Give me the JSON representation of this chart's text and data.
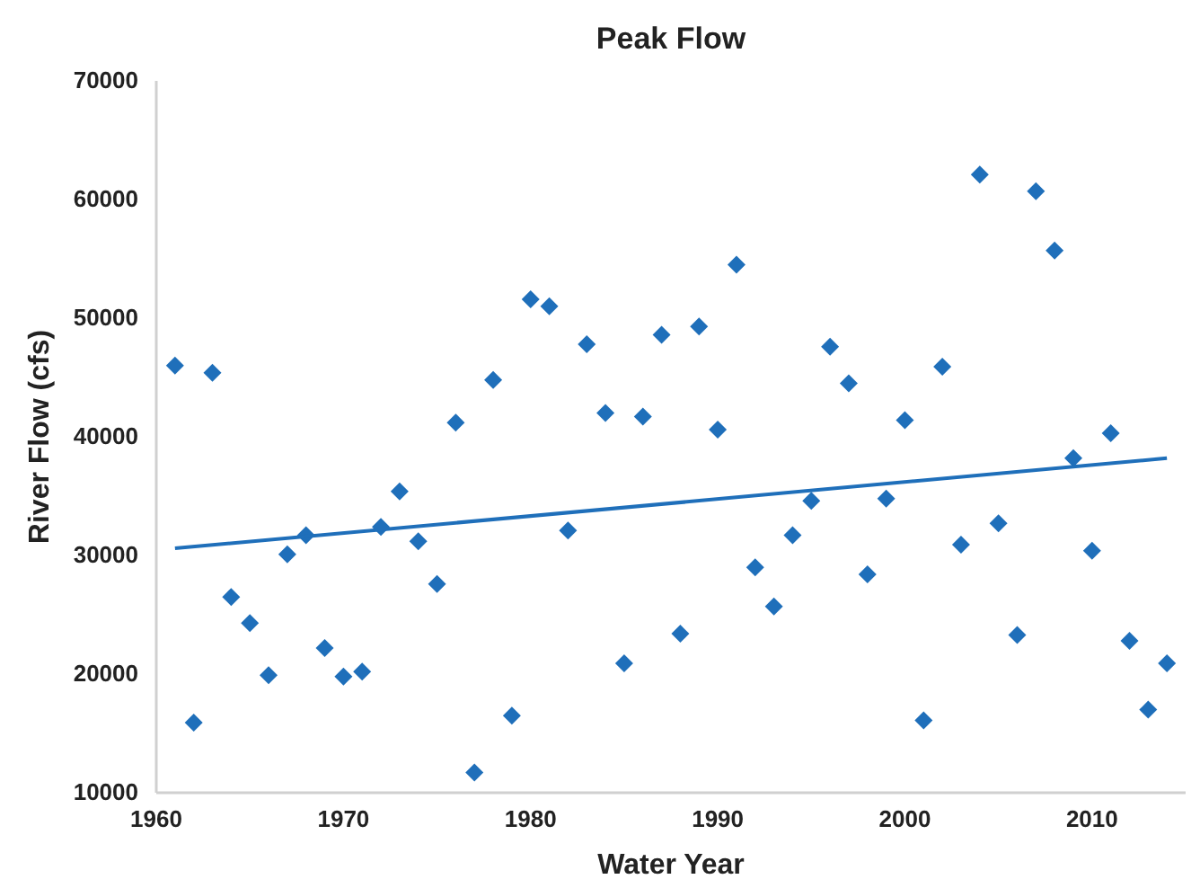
{
  "chart_data": {
    "type": "scatter",
    "title": "Peak Flow",
    "xlabel": "Water Year",
    "ylabel": "River Flow (cfs)",
    "xlim": [
      1960,
      2015
    ],
    "xticks": [
      1960,
      1970,
      1980,
      1990,
      2000,
      2010
    ],
    "ylim": [
      10000,
      70000
    ],
    "yticks": [
      10000,
      20000,
      30000,
      40000,
      50000,
      60000,
      70000
    ],
    "grid": false,
    "marker": "diamond",
    "series": [
      {
        "type": "scatter",
        "color": "#1f6fba",
        "x": [
          1961,
          1962,
          1963,
          1964,
          1965,
          1966,
          1967,
          1968,
          1969,
          1970,
          1971,
          1972,
          1973,
          1974,
          1975,
          1976,
          1977,
          1978,
          1979,
          1980,
          1981,
          1982,
          1983,
          1984,
          1985,
          1986,
          1987,
          1988,
          1989,
          1990,
          1991,
          1992,
          1993,
          1994,
          1995,
          1996,
          1997,
          1998,
          1999,
          2000,
          2001,
          2002,
          2003,
          2004,
          2005,
          2006,
          2007,
          2008,
          2009,
          2010,
          2011,
          2012,
          2013,
          2014
        ],
        "values": [
          46000,
          15900,
          45400,
          26500,
          24300,
          19900,
          30100,
          31700,
          22200,
          19800,
          20200,
          32400,
          35400,
          31200,
          27600,
          41200,
          11700,
          44800,
          16500,
          51600,
          51000,
          32100,
          47800,
          42000,
          20900,
          41700,
          48600,
          23400,
          49300,
          40600,
          54500,
          29000,
          25700,
          31700,
          34600,
          47600,
          44500,
          28400,
          34800,
          41400,
          16100,
          45900,
          30900,
          62100,
          32700,
          23300,
          60700,
          55700,
          38200,
          30400,
          40300,
          22800,
          17000,
          20900
        ]
      },
      {
        "type": "line",
        "color": "#1f6fba",
        "marker": "none",
        "x": [
          1961,
          2014
        ],
        "values": [
          30600,
          38200
        ]
      }
    ]
  }
}
